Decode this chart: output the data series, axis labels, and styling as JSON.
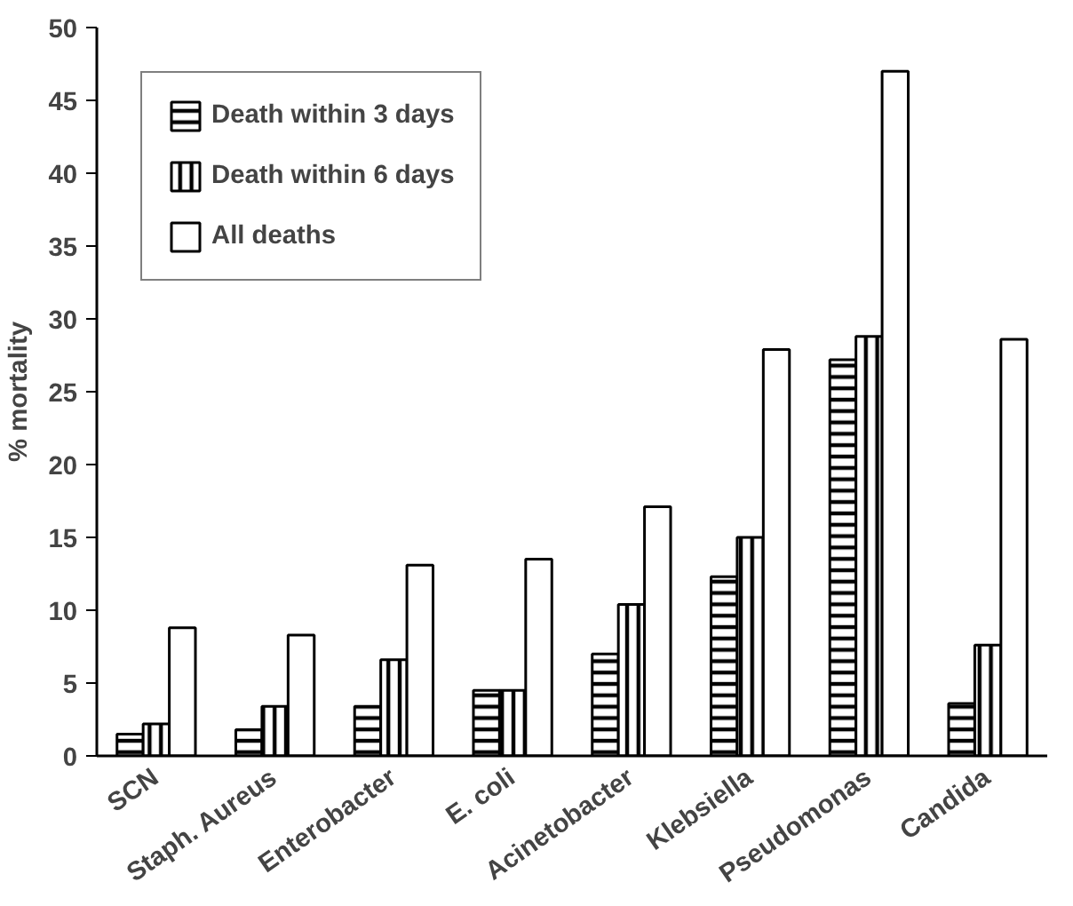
{
  "chart_data": {
    "type": "bar",
    "ylabel": "% mortality",
    "categories": [
      "SCN",
      "Staph. Aureus",
      "Enterobacter",
      "E. coli",
      "Acinetobacter",
      "Klebsiella",
      "Pseudomonas",
      "Candida"
    ],
    "series": [
      {
        "name": "Death within 3 days",
        "color": "#000000",
        "values": [
          1.5,
          1.8,
          3.4,
          4.5,
          7.0,
          12.3,
          27.2,
          3.6
        ]
      },
      {
        "name": "Death within 6 days",
        "color": "#000000",
        "values": [
          2.2,
          3.4,
          6.6,
          4.5,
          10.4,
          15.0,
          28.8,
          7.6
        ]
      },
      {
        "name": "All deaths",
        "color": "#ffffff",
        "values": [
          8.8,
          8.3,
          13.1,
          13.5,
          17.1,
          27.9,
          47.0,
          28.6
        ]
      }
    ],
    "ylim": [
      0,
      50
    ],
    "yticks": [
      0,
      5,
      10,
      15,
      20,
      25,
      30,
      35,
      40,
      45,
      50
    ],
    "grid": false,
    "legend": "top left"
  }
}
